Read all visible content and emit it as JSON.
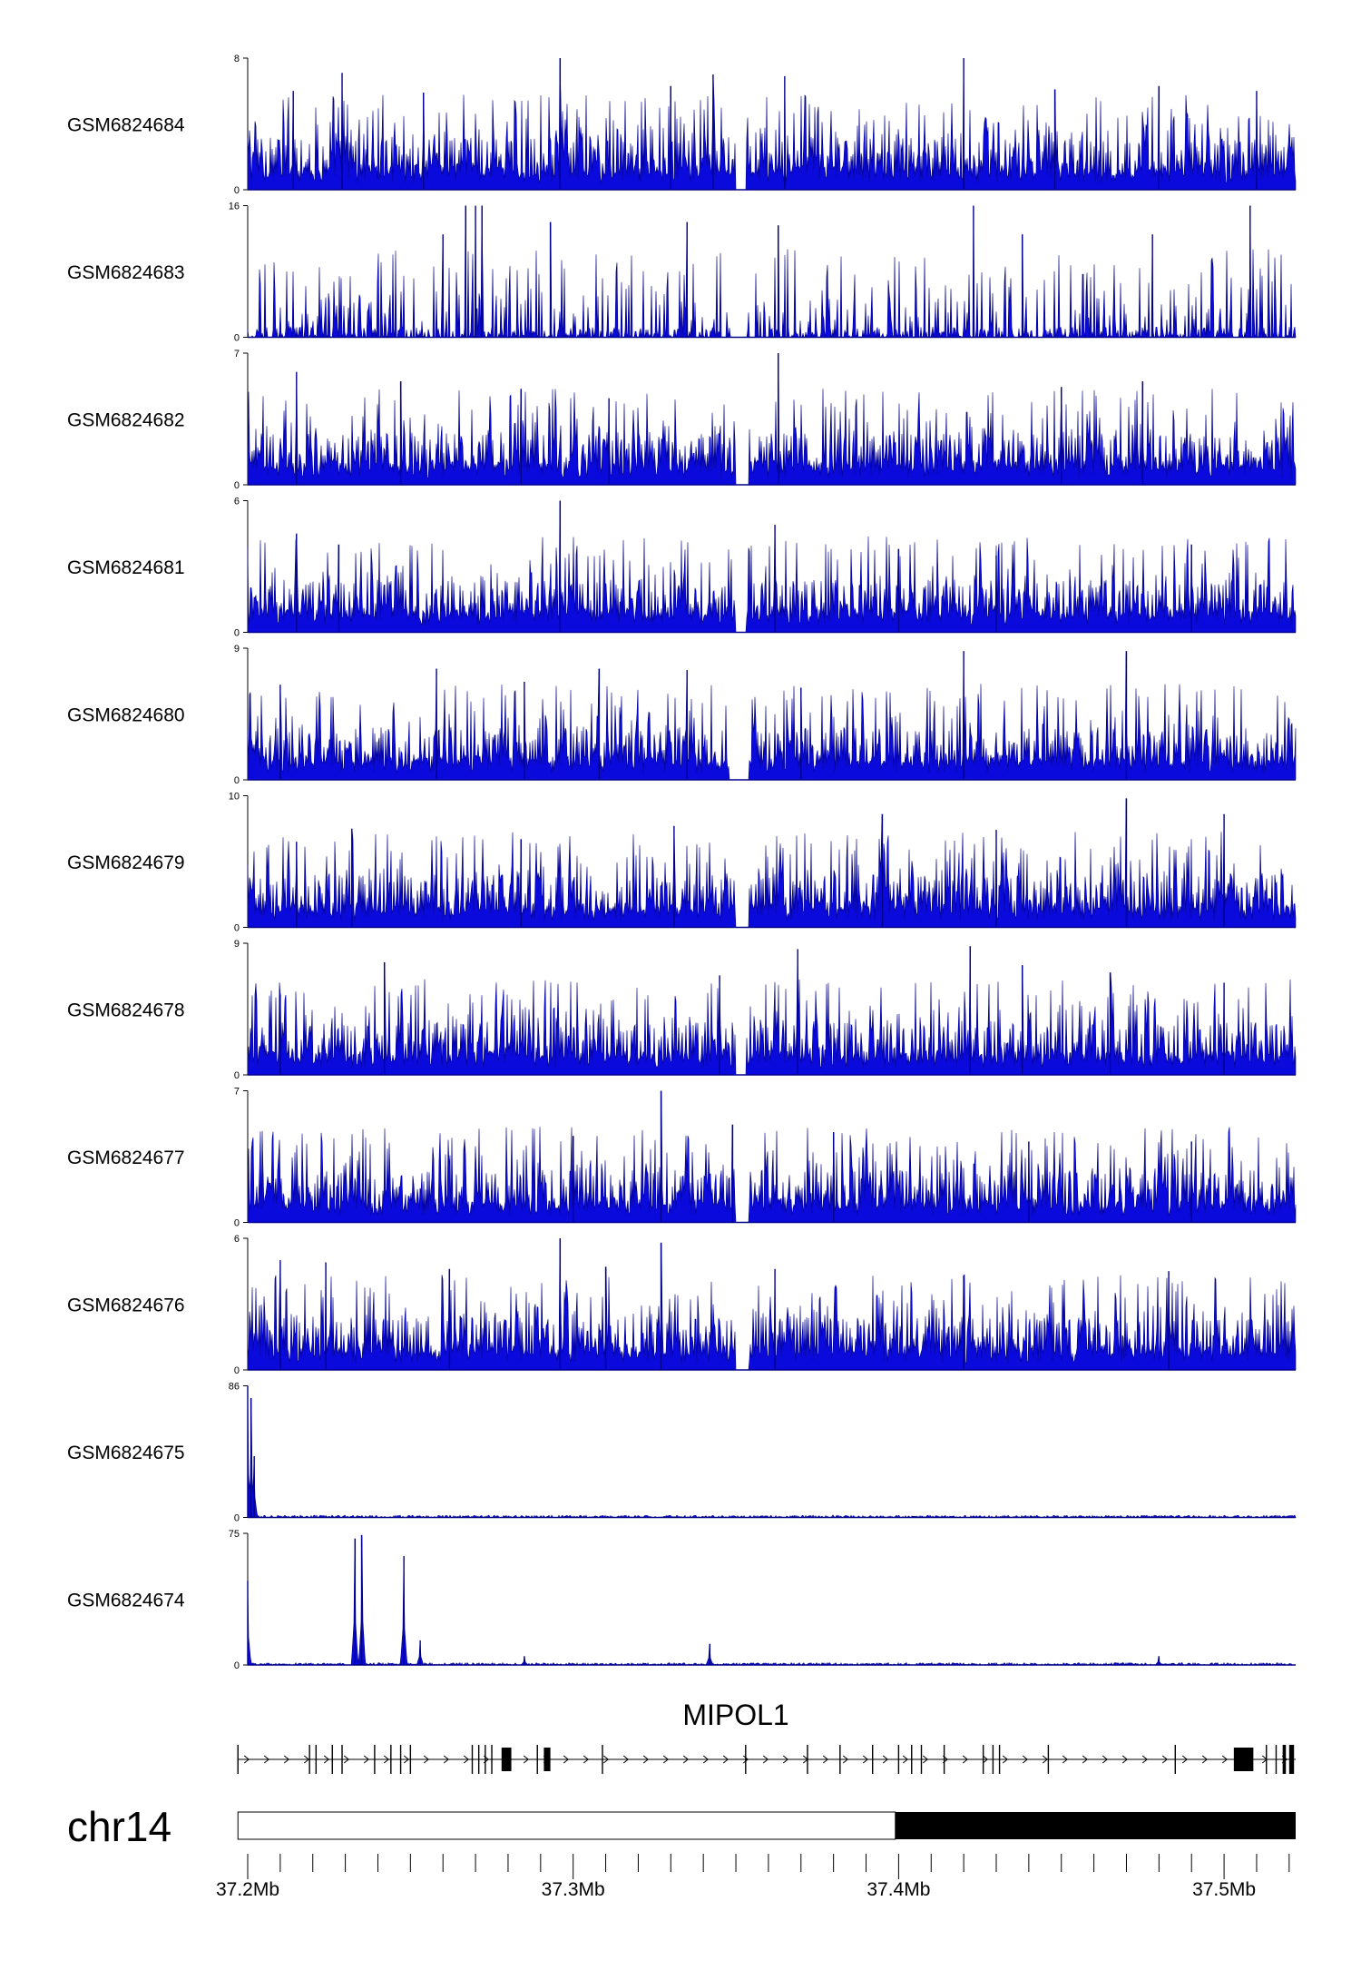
{
  "chart_data": {
    "type": "area",
    "x_range_mb": [
      37.2,
      37.522
    ],
    "tracks": [
      {
        "name": "GSM6824684",
        "ymin": 0,
        "ymax": 8,
        "gap": [
          37.35,
          37.353
        ],
        "profile": "uniform",
        "peaks": [
          {
            "x": 37.214,
            "y": 6
          },
          {
            "x": 37.229,
            "y": 7.1
          },
          {
            "x": 37.254,
            "y": 5.9
          },
          {
            "x": 37.296,
            "y": 8
          },
          {
            "x": 37.343,
            "y": 7
          },
          {
            "x": 37.365,
            "y": 6.9
          },
          {
            "x": 37.42,
            "y": 8
          },
          {
            "x": 37.48,
            "y": 6.3
          },
          {
            "x": 37.51,
            "y": 6
          },
          {
            "x": 37.33,
            "y": 6.3
          },
          {
            "x": 37.448,
            "y": 6.1
          }
        ]
      },
      {
        "name": "GSM6824683",
        "ymin": 0,
        "ymax": 16,
        "gap": [
          37.349,
          37.353
        ],
        "profile": "sparse",
        "peaks": [
          {
            "x": 37.267,
            "y": 16
          },
          {
            "x": 37.27,
            "y": 16
          },
          {
            "x": 37.272,
            "y": 16
          },
          {
            "x": 37.293,
            "y": 14
          },
          {
            "x": 37.335,
            "y": 14
          },
          {
            "x": 37.363,
            "y": 13.6
          },
          {
            "x": 37.423,
            "y": 16
          },
          {
            "x": 37.508,
            "y": 16
          },
          {
            "x": 37.438,
            "y": 12.5
          },
          {
            "x": 37.478,
            "y": 12.5
          },
          {
            "x": 37.26,
            "y": 12.5
          }
        ]
      },
      {
        "name": "GSM6824682",
        "ymin": 0,
        "ymax": 7,
        "gap": [
          37.35,
          37.354
        ],
        "profile": "uniform",
        "peaks": [
          {
            "x": 37.215,
            "y": 6
          },
          {
            "x": 37.247,
            "y": 5.5
          },
          {
            "x": 37.363,
            "y": 7
          },
          {
            "x": 37.45,
            "y": 5.2
          },
          {
            "x": 37.475,
            "y": 5.5
          },
          {
            "x": 37.311,
            "y": 4.6
          },
          {
            "x": 37.284,
            "y": 5.1
          }
        ]
      },
      {
        "name": "GSM6824681",
        "ymin": 0,
        "ymax": 6,
        "gap": [
          37.35,
          37.353
        ],
        "profile": "uniform",
        "peaks": [
          {
            "x": 37.296,
            "y": 6
          },
          {
            "x": 37.362,
            "y": 4.9
          },
          {
            "x": 37.215,
            "y": 4.5
          },
          {
            "x": 37.228,
            "y": 4
          },
          {
            "x": 37.49,
            "y": 4
          },
          {
            "x": 37.4,
            "y": 3.8
          },
          {
            "x": 37.43,
            "y": 3.5
          }
        ]
      },
      {
        "name": "GSM6824680",
        "ymin": 0,
        "ymax": 9,
        "gap": [
          37.348,
          37.354
        ],
        "profile": "uniform",
        "peaks": [
          {
            "x": 37.258,
            "y": 7.6
          },
          {
            "x": 37.308,
            "y": 7.6
          },
          {
            "x": 37.335,
            "y": 7.5
          },
          {
            "x": 37.42,
            "y": 8.8
          },
          {
            "x": 37.47,
            "y": 8.8
          },
          {
            "x": 37.285,
            "y": 6.7
          },
          {
            "x": 37.21,
            "y": 6.5
          },
          {
            "x": 37.37,
            "y": 6.3
          }
        ]
      },
      {
        "name": "GSM6824679",
        "ymin": 0,
        "ymax": 10,
        "gap": [
          37.35,
          37.354
        ],
        "profile": "uniform",
        "peaks": [
          {
            "x": 37.232,
            "y": 7.5
          },
          {
            "x": 37.284,
            "y": 6.7
          },
          {
            "x": 37.331,
            "y": 7.7
          },
          {
            "x": 37.395,
            "y": 8.6
          },
          {
            "x": 37.47,
            "y": 9.8
          },
          {
            "x": 37.5,
            "y": 8.6
          },
          {
            "x": 37.43,
            "y": 7.4
          },
          {
            "x": 37.215,
            "y": 6.5
          }
        ]
      },
      {
        "name": "GSM6824678",
        "ymin": 0,
        "ymax": 9,
        "gap": [
          37.35,
          37.353
        ],
        "profile": "uniform",
        "peaks": [
          {
            "x": 37.242,
            "y": 7.7
          },
          {
            "x": 37.345,
            "y": 6.8
          },
          {
            "x": 37.369,
            "y": 8.6
          },
          {
            "x": 37.422,
            "y": 8.8
          },
          {
            "x": 37.438,
            "y": 7.5
          },
          {
            "x": 37.465,
            "y": 7
          },
          {
            "x": 37.5,
            "y": 6.3
          },
          {
            "x": 37.21,
            "y": 5.5
          }
        ]
      },
      {
        "name": "GSM6824677",
        "ymin": 0,
        "ymax": 7,
        "gap": [
          37.35,
          37.354
        ],
        "profile": "uniform",
        "peaks": [
          {
            "x": 37.327,
            "y": 7
          },
          {
            "x": 37.349,
            "y": 5.2
          },
          {
            "x": 37.3,
            "y": 4.6
          },
          {
            "x": 37.38,
            "y": 4.8
          },
          {
            "x": 37.44,
            "y": 4.3
          },
          {
            "x": 37.49,
            "y": 4.3
          }
        ]
      },
      {
        "name": "GSM6824676",
        "ymin": 0,
        "ymax": 6,
        "gap": [
          37.35,
          37.354
        ],
        "profile": "uniform",
        "peaks": [
          {
            "x": 37.296,
            "y": 6
          },
          {
            "x": 37.327,
            "y": 5.8
          },
          {
            "x": 37.262,
            "y": 4.6
          },
          {
            "x": 37.21,
            "y": 5
          },
          {
            "x": 37.224,
            "y": 4.9
          },
          {
            "x": 37.362,
            "y": 4.6
          },
          {
            "x": 37.483,
            "y": 4.5
          },
          {
            "x": 37.31,
            "y": 4.7
          },
          {
            "x": 37.42,
            "y": 4.3
          }
        ]
      },
      {
        "name": "GSM6824675",
        "ymin": 0,
        "ymax": 86,
        "gap": null,
        "profile": "flat",
        "peaks": [
          {
            "x": 37.2,
            "y": 86
          },
          {
            "x": 37.201,
            "y": 78
          },
          {
            "x": 37.202,
            "y": 40
          }
        ]
      },
      {
        "name": "GSM6824674",
        "ymin": 0,
        "ymax": 75,
        "gap": null,
        "profile": "flat",
        "peaks": [
          {
            "x": 37.2,
            "y": 48
          },
          {
            "x": 37.233,
            "y": 72
          },
          {
            "x": 37.235,
            "y": 74
          },
          {
            "x": 37.248,
            "y": 62
          },
          {
            "x": 37.253,
            "y": 14
          },
          {
            "x": 37.342,
            "y": 12
          },
          {
            "x": 37.285,
            "y": 5
          },
          {
            "x": 37.48,
            "y": 5
          }
        ]
      }
    ],
    "gene": {
      "name": "MIPOL1",
      "strand": "+",
      "start_mb": 37.197,
      "end_mb": 37.522,
      "exon_lines_mb": [
        37.197,
        37.219,
        37.221,
        37.226,
        37.229,
        37.239,
        37.244,
        37.247,
        37.25,
        37.269,
        37.271,
        37.273,
        37.275,
        37.289,
        37.309,
        37.353,
        37.372,
        37.382,
        37.392,
        37.4,
        37.404,
        37.407,
        37.414,
        37.426,
        37.429,
        37.431,
        37.446,
        37.485,
        37.513,
        37.516
      ],
      "exon_blocks_mb": [
        [
          37.278,
          37.281
        ],
        [
          37.291,
          37.293
        ],
        [
          37.503,
          37.509
        ]
      ],
      "end_blocks_mb": [
        [
          37.518,
          37.519
        ],
        [
          37.52,
          37.5215
        ]
      ]
    },
    "chromosome": "chr14",
    "ideogram": {
      "light": [
        37.197,
        37.399
      ],
      "dark": [
        37.399,
        37.522
      ]
    },
    "x_ticks": [
      37.2,
      37.3,
      37.4,
      37.5
    ],
    "x_tick_labels": [
      "37.2Mb",
      "37.3Mb",
      "37.4Mb",
      "37.5Mb"
    ],
    "colors": {
      "signal": "#0a0adc",
      "signal_stroke": "#00008b",
      "axis": "#000000",
      "gene": "#000000"
    }
  }
}
